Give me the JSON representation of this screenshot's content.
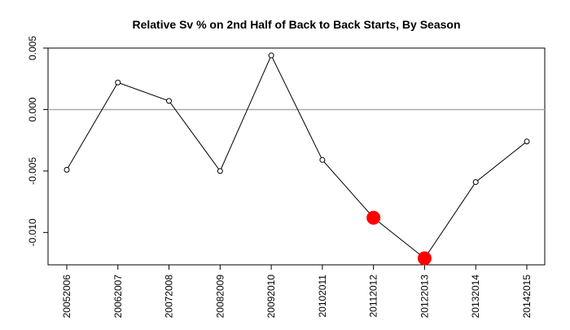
{
  "chart_data": {
    "type": "line",
    "title": "Relative Sv % on 2nd Half of Back to Back Starts, By Season",
    "xlabel": "",
    "ylabel": "",
    "categories": [
      "20052006",
      "20062007",
      "20072008",
      "20082009",
      "20092010",
      "20102011",
      "20112012",
      "20122013",
      "20132014",
      "20142015"
    ],
    "series": [
      {
        "values": [
          -0.0049,
          0.0022,
          0.0007,
          -0.005,
          0.0044,
          -0.0041,
          -0.0088,
          -0.0121,
          -0.0059,
          -0.0026
        ],
        "highlighted_categories": [
          "20112012",
          "20122013"
        ],
        "color": "#000000",
        "highlight_color": "#ff0000"
      }
    ],
    "ylim": [
      -0.0125,
      0.005
    ],
    "yticks": [
      0.005,
      0.0,
      -0.005,
      -0.01
    ],
    "ytick_labels": [
      "0.005",
      "0.000",
      "-0.005",
      "-0.010"
    ],
    "reference_line": {
      "y": 0.0,
      "color": "#aaaaaa"
    },
    "grid": false,
    "legend": "none"
  }
}
